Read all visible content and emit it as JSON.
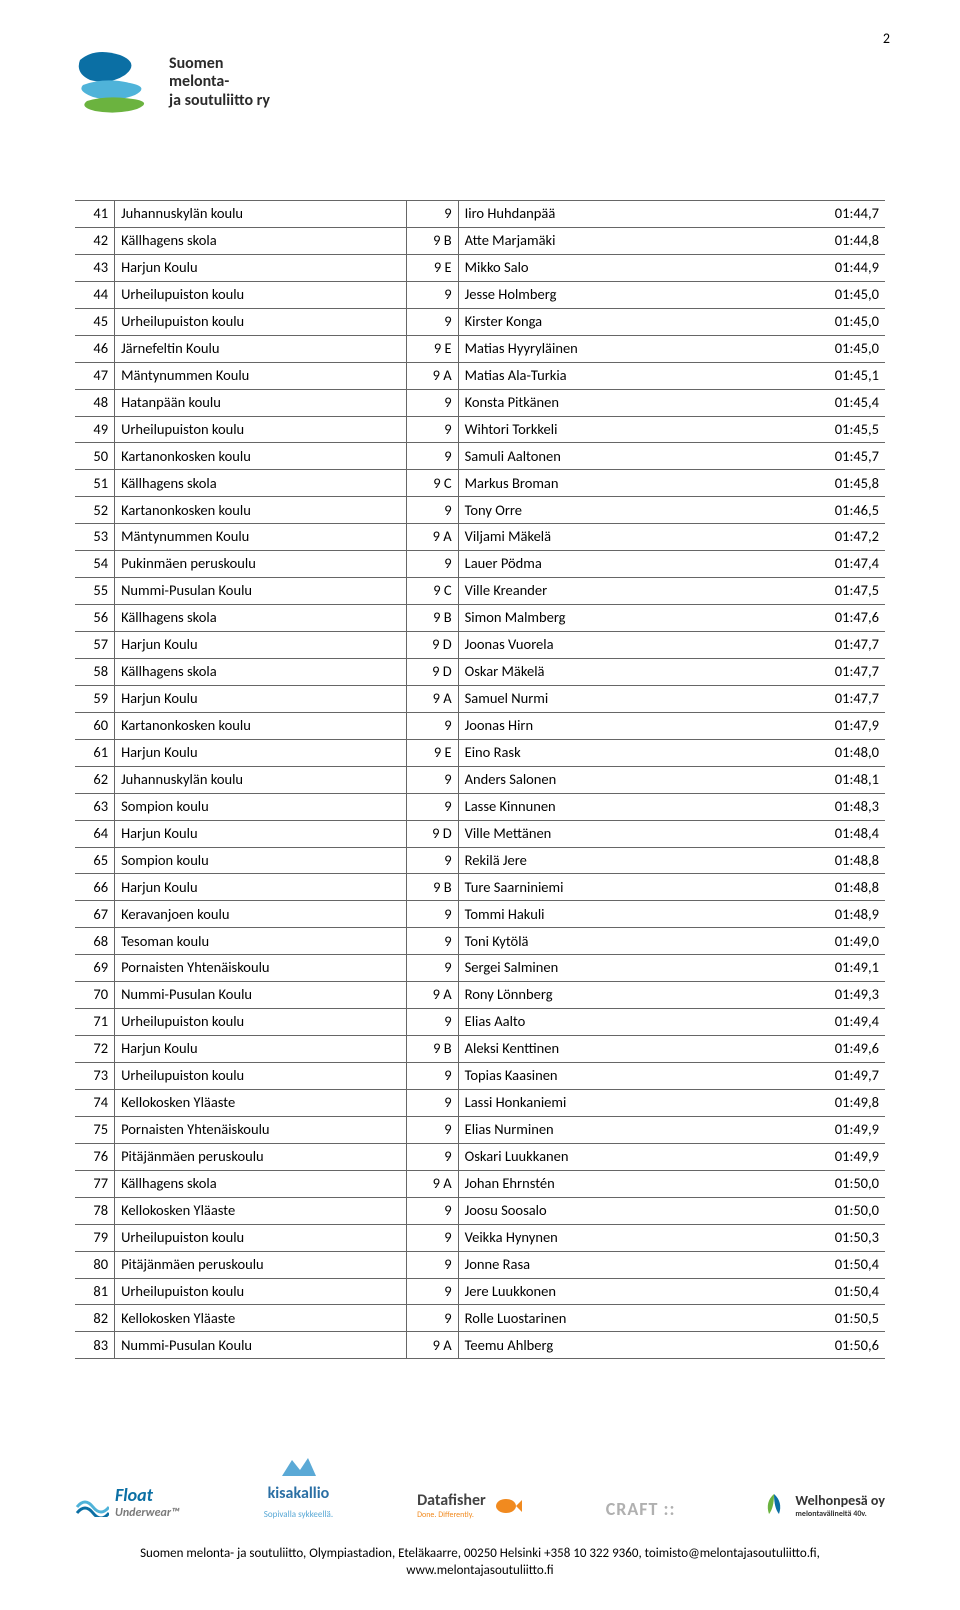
{
  "page_number": "2",
  "org": {
    "line1": "Suomen",
    "line2": "melonta-",
    "line3": "ja soutuliitto ry"
  },
  "logo_colors": {
    "blue": "#0b6fa4",
    "cyan": "#4fb3d9",
    "green": "#6bb33f"
  },
  "table": {
    "border_color": "#666666",
    "font_size": 14.5,
    "col_widths": {
      "rank": 38,
      "school": 280,
      "grade": 50,
      "name": 310,
      "time": 100
    },
    "rows": [
      {
        "r": "41",
        "s": "Juhannuskylän koulu",
        "g": "9",
        "n": "Iiro Huhdanpää",
        "t": "01:44,7"
      },
      {
        "r": "42",
        "s": "Källhagens skola",
        "g": "9 B",
        "n": "Atte Marjamäki",
        "t": "01:44,8"
      },
      {
        "r": "43",
        "s": "Harjun Koulu",
        "g": "9 E",
        "n": "Mikko Salo",
        "t": "01:44,9"
      },
      {
        "r": "44",
        "s": "Urheilupuiston koulu",
        "g": "9",
        "n": "Jesse Holmberg",
        "t": "01:45,0"
      },
      {
        "r": "45",
        "s": "Urheilupuiston koulu",
        "g": "9",
        "n": "Kirster Konga",
        "t": "01:45,0"
      },
      {
        "r": "46",
        "s": "Järnefeltin Koulu",
        "g": "9 E",
        "n": "Matias Hyyryläinen",
        "t": "01:45,0"
      },
      {
        "r": "47",
        "s": "Mäntynummen Koulu",
        "g": "9 A",
        "n": "Matias Ala-Turkia",
        "t": "01:45,1"
      },
      {
        "r": "48",
        "s": "Hatanpään koulu",
        "g": "9",
        "n": "Konsta Pitkänen",
        "t": "01:45,4"
      },
      {
        "r": "49",
        "s": "Urheilupuiston koulu",
        "g": "9",
        "n": "Wihtori Torkkeli",
        "t": "01:45,5"
      },
      {
        "r": "50",
        "s": "Kartanonkosken koulu",
        "g": "9",
        "n": "Samuli Aaltonen",
        "t": "01:45,7"
      },
      {
        "r": "51",
        "s": "Källhagens skola",
        "g": "9 C",
        "n": "Markus Broman",
        "t": "01:45,8"
      },
      {
        "r": "52",
        "s": "Kartanonkosken koulu",
        "g": "9",
        "n": "Tony Orre",
        "t": "01:46,5"
      },
      {
        "r": "53",
        "s": "Mäntynummen Koulu",
        "g": "9 A",
        "n": "Viljami Mäkelä",
        "t": "01:47,2"
      },
      {
        "r": "54",
        "s": "Pukinmäen peruskoulu",
        "g": "9",
        "n": "Lauer Pödma",
        "t": "01:47,4"
      },
      {
        "r": "55",
        "s": "Nummi-Pusulan Koulu",
        "g": "9 C",
        "n": "Ville Kreander",
        "t": "01:47,5"
      },
      {
        "r": "56",
        "s": "Källhagens skola",
        "g": "9 B",
        "n": "Simon Malmberg",
        "t": "01:47,6"
      },
      {
        "r": "57",
        "s": "Harjun Koulu",
        "g": "9 D",
        "n": "Joonas Vuorela",
        "t": "01:47,7"
      },
      {
        "r": "58",
        "s": "Källhagens skola",
        "g": "9 D",
        "n": "Oskar Mäkelä",
        "t": "01:47,7"
      },
      {
        "r": "59",
        "s": "Harjun Koulu",
        "g": "9 A",
        "n": "Samuel Nurmi",
        "t": "01:47,7"
      },
      {
        "r": "60",
        "s": "Kartanonkosken koulu",
        "g": "9",
        "n": "Joonas Hirn",
        "t": "01:47,9"
      },
      {
        "r": "61",
        "s": "Harjun Koulu",
        "g": "9 E",
        "n": "Eino Rask",
        "t": "01:48,0"
      },
      {
        "r": "62",
        "s": "Juhannuskylän koulu",
        "g": "9",
        "n": "Anders Salonen",
        "t": "01:48,1"
      },
      {
        "r": "63",
        "s": "Sompion koulu",
        "g": "9",
        "n": "Lasse Kinnunen",
        "t": "01:48,3"
      },
      {
        "r": "64",
        "s": "Harjun Koulu",
        "g": "9 D",
        "n": "Ville Mettänen",
        "t": "01:48,4"
      },
      {
        "r": "65",
        "s": "Sompion koulu",
        "g": "9",
        "n": "Rekilä Jere",
        "t": "01:48,8"
      },
      {
        "r": "66",
        "s": "Harjun Koulu",
        "g": "9 B",
        "n": "Ture Saarniniemi",
        "t": "01:48,8"
      },
      {
        "r": "67",
        "s": "Keravanjoen koulu",
        "g": "9",
        "n": "Tommi Hakuli",
        "t": "01:48,9"
      },
      {
        "r": "68",
        "s": "Tesoman koulu",
        "g": "9",
        "n": "Toni Kytölä",
        "t": "01:49,0"
      },
      {
        "r": "69",
        "s": "Pornaisten Yhtenäiskoulu",
        "g": "9",
        "n": "Sergei Salminen",
        "t": "01:49,1"
      },
      {
        "r": "70",
        "s": "Nummi-Pusulan Koulu",
        "g": "9 A",
        "n": "Rony Lönnberg",
        "t": "01:49,3"
      },
      {
        "r": "71",
        "s": "Urheilupuiston koulu",
        "g": "9",
        "n": "Elias Aalto",
        "t": "01:49,4"
      },
      {
        "r": "72",
        "s": "Harjun Koulu",
        "g": "9 B",
        "n": "Aleksi Kenttinen",
        "t": "01:49,6"
      },
      {
        "r": "73",
        "s": "Urheilupuiston koulu",
        "g": "9",
        "n": "Topias Kaasinen",
        "t": "01:49,7"
      },
      {
        "r": "74",
        "s": "Kellokosken Yläaste",
        "g": "9",
        "n": "Lassi Honkaniemi",
        "t": "01:49,8"
      },
      {
        "r": "75",
        "s": "Pornaisten Yhtenäiskoulu",
        "g": "9",
        "n": "Elias Nurminen",
        "t": "01:49,9"
      },
      {
        "r": "76",
        "s": "Pitäjänmäen peruskoulu",
        "g": "9",
        "n": "Oskari Luukkanen",
        "t": "01:49,9"
      },
      {
        "r": "77",
        "s": "Källhagens skola",
        "g": "9 A",
        "n": "Johan Ehrnstén",
        "t": "01:50,0"
      },
      {
        "r": "78",
        "s": "Kellokosken Yläaste",
        "g": "9",
        "n": "Joosu Soosalo",
        "t": "01:50,0"
      },
      {
        "r": "79",
        "s": "Urheilupuiston koulu",
        "g": "9",
        "n": "Veikka Hynynen",
        "t": "01:50,3"
      },
      {
        "r": "80",
        "s": "Pitäjänmäen peruskoulu",
        "g": "9",
        "n": "Jonne Rasa",
        "t": "01:50,4"
      },
      {
        "r": "81",
        "s": "Urheilupuiston koulu",
        "g": "9",
        "n": "Jere Luukkonen",
        "t": "01:50,4"
      },
      {
        "r": "82",
        "s": "Kellokosken Yläaste",
        "g": "9",
        "n": "Rolle Luostarinen",
        "t": "01:50,5"
      },
      {
        "r": "83",
        "s": "Nummi-Pusulan Koulu",
        "g": "9 A",
        "n": "Teemu Ahlberg",
        "t": "01:50,6"
      }
    ]
  },
  "sponsors": {
    "float": {
      "name": "Float",
      "sub": "Underwear™"
    },
    "kisa": {
      "name": "kisakallio",
      "sub": "Sopivalla sykkeellä."
    },
    "data": {
      "name": "Datafisher",
      "sub": "Done. Differently."
    },
    "craft": {
      "name": "CRAFT ::"
    },
    "welho": {
      "name": "Welhonpesä oy",
      "sub": "melontavälineitä 40v."
    }
  },
  "footer": {
    "line1": "Suomen melonta- ja soutuliitto, Olympiastadion, Eteläkaarre, 00250 Helsinki +358 10 322 9360, toimisto@melontajasoutuliitto.fi,",
    "line2": "www.melontajasoutuliitto.fi"
  }
}
